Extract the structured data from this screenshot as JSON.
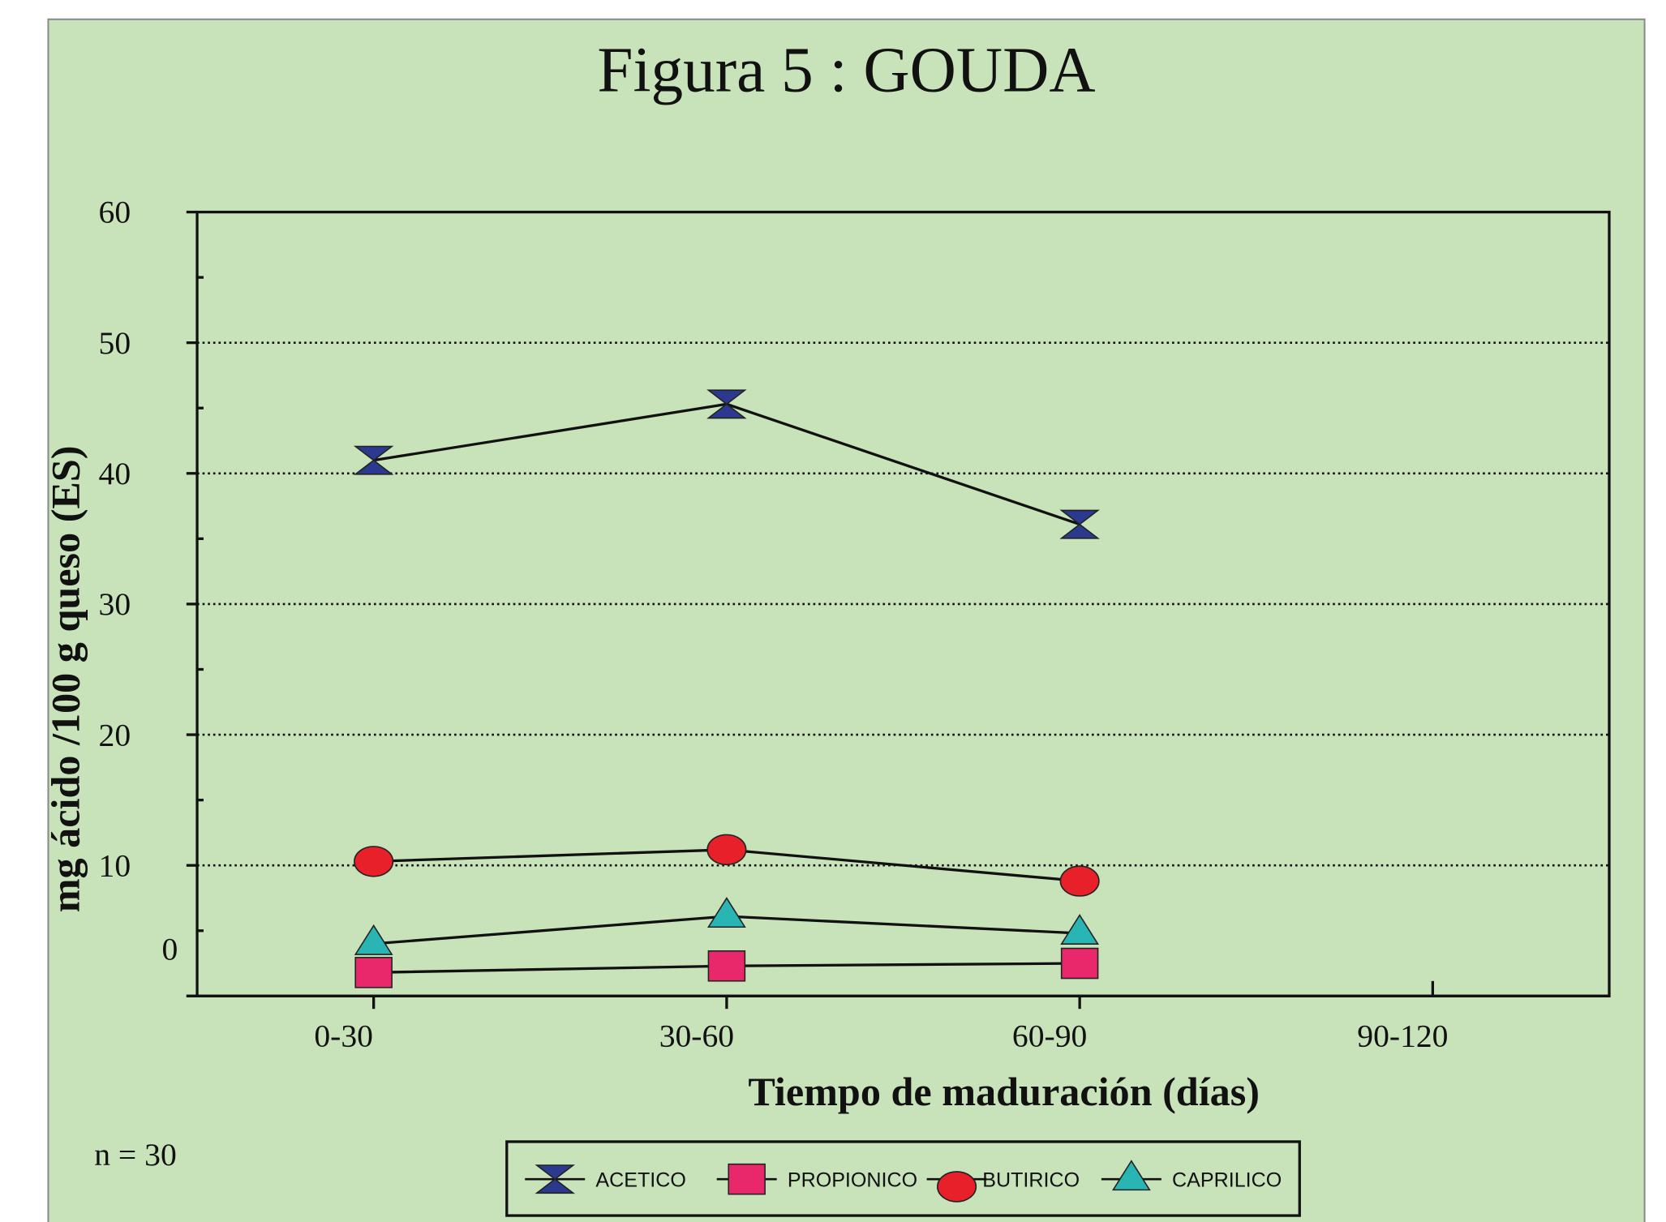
{
  "chart_data": {
    "type": "line",
    "title": "Figura 5 : GOUDA",
    "xlabel": "Tiempo de maduración (días)",
    "ylabel": "mg ácido /100 g queso (ES)",
    "note": "n = 30",
    "categories": [
      "0-30",
      "30-60",
      "60-90",
      "90-120"
    ],
    "series": [
      {
        "name": "ACETICO",
        "color": "#2b3a8f",
        "marker": "hourglass",
        "values": [
          41.0,
          45.3,
          36.1,
          null
        ]
      },
      {
        "name": "PROPIONICO",
        "color": "#e8286a",
        "marker": "square",
        "values": [
          1.8,
          2.3,
          2.5,
          null
        ]
      },
      {
        "name": "BUTIRICO",
        "color": "#e8202a",
        "marker": "circle",
        "values": [
          10.3,
          11.2,
          8.8,
          null
        ]
      },
      {
        "name": "CAPRILICO",
        "color": "#2ab5b5",
        "marker": "triangle",
        "values": [
          4.0,
          6.1,
          4.8,
          null
        ]
      }
    ],
    "ylim": [
      0,
      60
    ],
    "yticks": [
      0,
      10,
      20,
      30,
      40,
      50,
      60
    ],
    "grid": true,
    "legend": "bottom"
  }
}
